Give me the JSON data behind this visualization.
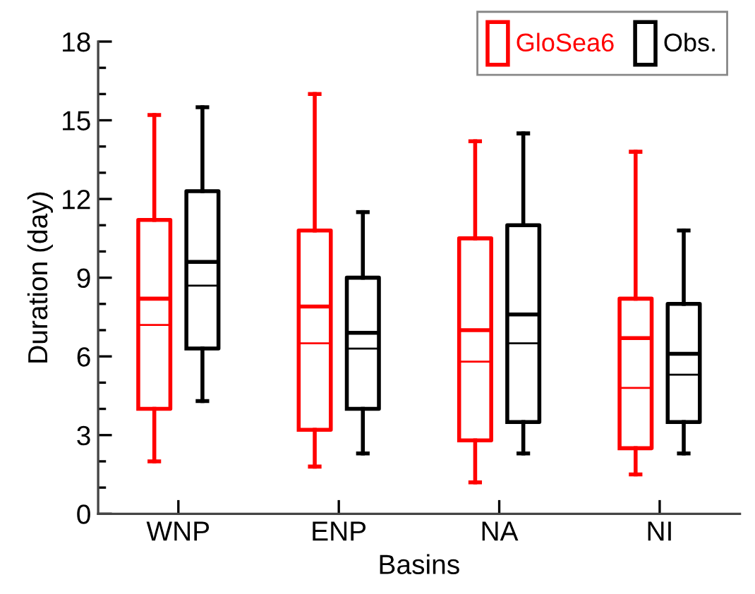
{
  "chart_data": {
    "type": "box",
    "xlabel": "Basins",
    "ylabel": "Duration (day)",
    "categories": [
      "WNP",
      "ENP",
      "NA",
      "NI"
    ],
    "ylim": [
      0,
      18
    ],
    "yticks": [
      0,
      {
        "value": 1,
        "label": null
      },
      {
        "value": 2,
        "label": null
      },
      3,
      {
        "value": 4,
        "label": null
      },
      {
        "value": 5,
        "label": null
      },
      6,
      {
        "value": 7,
        "label": null
      },
      {
        "value": 8,
        "label": null
      },
      9,
      {
        "value": 10,
        "label": null
      },
      {
        "value": 11,
        "label": null
      },
      12,
      {
        "value": 13,
        "label": null
      },
      {
        "value": 14,
        "label": null
      },
      15,
      {
        "value": 16,
        "label": null
      },
      {
        "value": 17,
        "label": null
      },
      18
    ],
    "grid": false,
    "legend": "top right",
    "series": [
      {
        "name": "GloSea6",
        "color": "#ff0000",
        "boxes": [
          {
            "low": 2.0,
            "q1": 4.0,
            "median": 8.2,
            "q3": 11.2,
            "high": 15.2,
            "mean": 7.2
          },
          {
            "low": 1.8,
            "q1": 3.2,
            "median": 7.9,
            "q3": 10.8,
            "high": 16.0,
            "mean": 6.5
          },
          {
            "low": 1.2,
            "q1": 2.8,
            "median": 7.0,
            "q3": 10.5,
            "high": 14.2,
            "mean": 5.8
          },
          {
            "low": 1.5,
            "q1": 2.5,
            "median": 6.7,
            "q3": 8.2,
            "high": 13.8,
            "mean": 4.8
          }
        ]
      },
      {
        "name": "Obs.",
        "color": "#000000",
        "boxes": [
          {
            "low": 4.3,
            "q1": 6.3,
            "median": 9.6,
            "q3": 12.3,
            "high": 15.5,
            "mean": 8.7
          },
          {
            "low": 2.3,
            "q1": 4.0,
            "median": 6.9,
            "q3": 9.0,
            "high": 11.5,
            "mean": 6.3
          },
          {
            "low": 2.3,
            "q1": 3.5,
            "median": 7.6,
            "q3": 11.0,
            "high": 14.5,
            "mean": 6.5
          },
          {
            "low": 2.3,
            "q1": 3.5,
            "median": 6.1,
            "q3": 8.0,
            "high": 10.8,
            "mean": 5.3
          }
        ]
      }
    ]
  }
}
